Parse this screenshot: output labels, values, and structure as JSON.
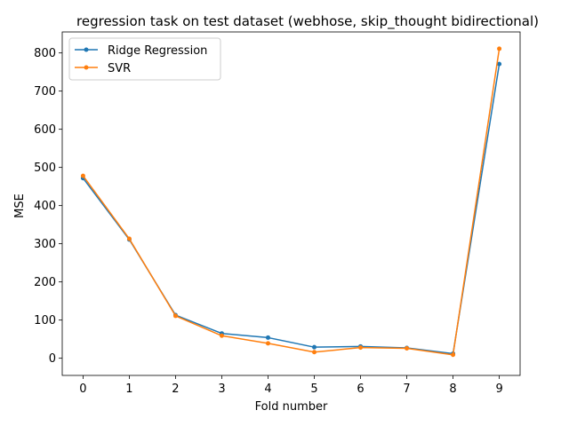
{
  "chart_data": {
    "type": "line",
    "title": "regression task on test dataset (webhose, skip_thought bidirectional)",
    "xlabel": "Fold number",
    "ylabel": "MSE",
    "x": [
      0,
      1,
      2,
      3,
      4,
      5,
      6,
      7,
      8,
      9
    ],
    "xticks": [
      0,
      1,
      2,
      3,
      4,
      5,
      6,
      7,
      8,
      9
    ],
    "yticks": [
      0,
      100,
      200,
      300,
      400,
      500,
      600,
      700,
      800
    ],
    "xlim": [
      -0.45,
      9.45
    ],
    "ylim": [
      -45,
      855
    ],
    "grid": false,
    "legend_position": "top-left",
    "series": [
      {
        "name": "Ridge Regression",
        "color": "#1f77b4",
        "values": [
          472,
          311,
          113,
          65,
          54,
          29,
          31,
          27,
          12,
          771
        ]
      },
      {
        "name": "SVR",
        "color": "#ff7f0e",
        "values": [
          478,
          313,
          111,
          59,
          39,
          16,
          28,
          26,
          9,
          811
        ]
      }
    ]
  }
}
